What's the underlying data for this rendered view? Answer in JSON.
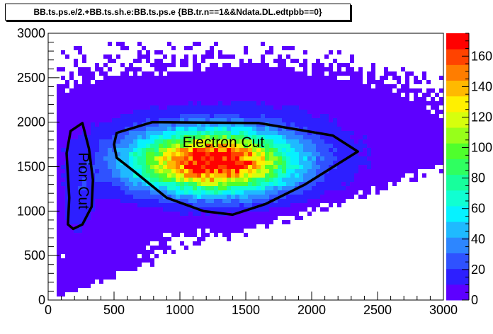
{
  "title": "BB.ts.ps.e/2.+BB.ts.sh.e:BB.ts.ps.e {BB.tr.n==1&&Ndata.DL.edtpbb==0}",
  "chart_data": {
    "type": "heatmap",
    "xlim": [
      0,
      3000
    ],
    "ylim": [
      0,
      3000
    ],
    "zlim": [
      0,
      175
    ],
    "x_ticks": [
      0,
      500,
      1000,
      1500,
      2000,
      2500,
      3000
    ],
    "y_ticks": [
      0,
      500,
      1000,
      1500,
      2000,
      2500,
      3000
    ],
    "z_ticks": [
      0,
      20,
      40,
      60,
      80,
      100,
      120,
      140,
      160
    ],
    "grid": false,
    "annotations": [
      {
        "text": "Electron Cut",
        "text_anchor": [
          1330,
          1720
        ],
        "polygon": [
          [
            520,
            1880
          ],
          [
            790,
            2000
          ],
          [
            1600,
            1990
          ],
          [
            2160,
            1850
          ],
          [
            2350,
            1670
          ],
          [
            1950,
            1300
          ],
          [
            1650,
            1080
          ],
          [
            1400,
            960
          ],
          [
            1180,
            1000
          ],
          [
            900,
            1150
          ],
          [
            650,
            1450
          ],
          [
            520,
            1600
          ],
          [
            500,
            1750
          ]
        ]
      },
      {
        "text": "Pion Cut",
        "text_anchor": [
          230,
          1340
        ],
        "text_rotation": 90,
        "polygon": [
          [
            260,
            1990
          ],
          [
            170,
            1900
          ],
          [
            140,
            1650
          ],
          [
            160,
            1150
          ],
          [
            150,
            850
          ],
          [
            190,
            800
          ],
          [
            260,
            850
          ],
          [
            330,
            1050
          ],
          [
            340,
            1350
          ],
          [
            310,
            1700
          ]
        ]
      }
    ],
    "palette": [
      "#5d00ff",
      "#2d1fff",
      "#2f52ff",
      "#2d86ff",
      "#1fbaff",
      "#06f2ff",
      "#10ffd2",
      "#17ff9c",
      "#2fff60",
      "#4fff2c",
      "#97ff1a",
      "#d6ff0d",
      "#fff000",
      "#ffb900",
      "#ff7d00",
      "#ff4300",
      "#ff0000"
    ]
  }
}
